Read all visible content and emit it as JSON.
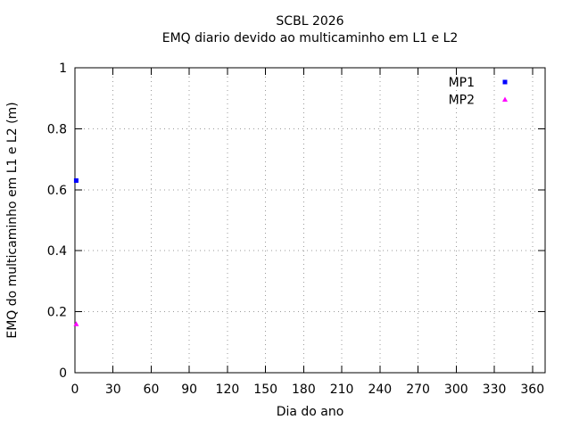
{
  "page": {
    "background": "#ffffff"
  },
  "chart_data": {
    "type": "scatter",
    "title": "SCBL 2026",
    "subtitle": "EMQ diario devido ao multicaminho em L1 e L2",
    "xlabel": "Dia do ano",
    "ylabel": "EMQ do multicaminho em L1 e L2 (m)",
    "xlim": [
      0,
      370
    ],
    "ylim": [
      0,
      1
    ],
    "xticks": [
      0,
      30,
      60,
      90,
      120,
      150,
      180,
      210,
      240,
      270,
      300,
      330,
      360
    ],
    "yticks": [
      0,
      0.2,
      0.4,
      0.6,
      0.8,
      1
    ],
    "grid": true,
    "grid_color": "#9a9a9a",
    "axis_color": "#000000",
    "legend": {
      "position": "top-right-inside"
    },
    "series": [
      {
        "name": "MP1",
        "color": "#0000ff",
        "marker": "square",
        "points": [
          [
            1,
            0.63
          ]
        ]
      },
      {
        "name": "MP2",
        "color": "#ff00ff",
        "marker": "triangle",
        "points": [
          [
            1,
            0.16
          ]
        ]
      }
    ]
  }
}
